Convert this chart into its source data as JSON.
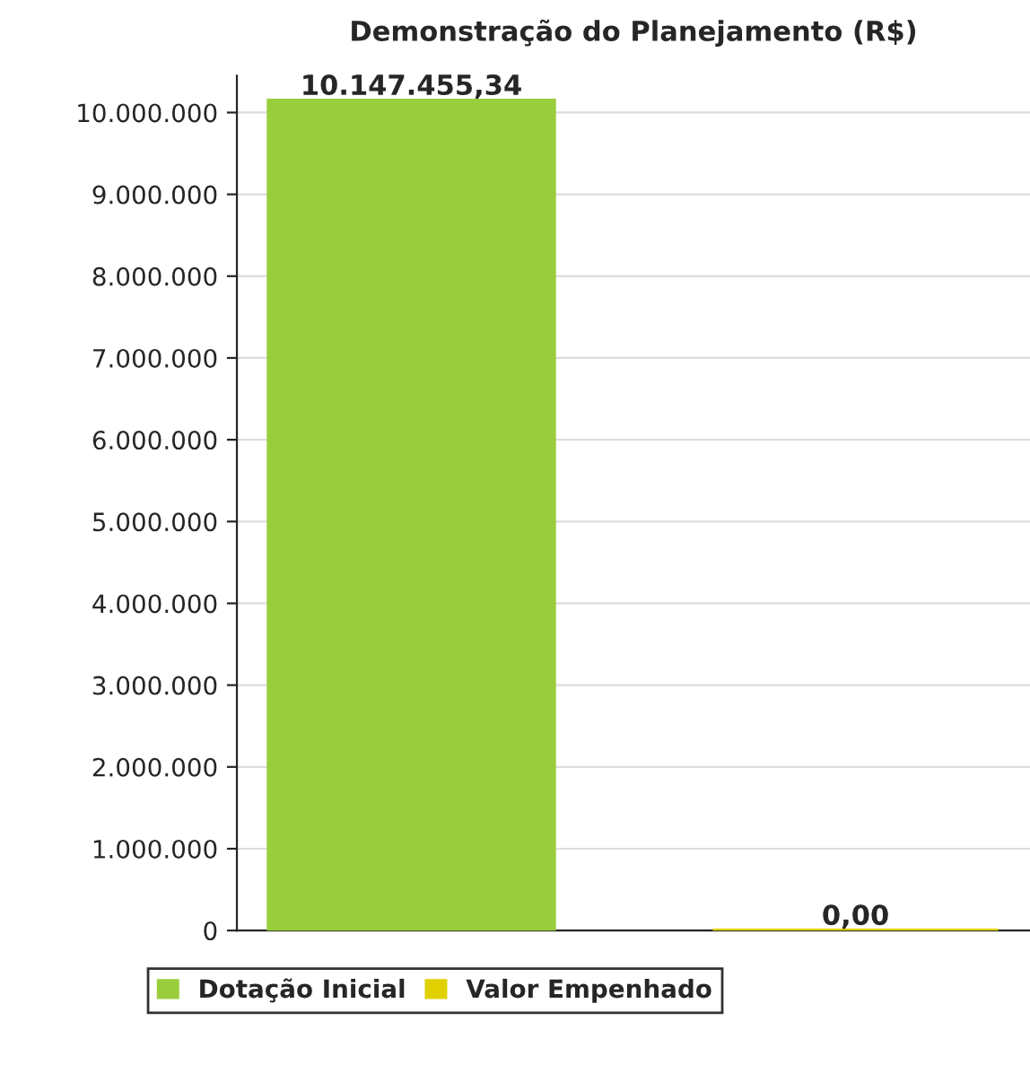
{
  "chart_data": {
    "type": "bar",
    "title": "Demonstração do Planejamento (R$)",
    "categories": [
      null
    ],
    "series": [
      {
        "name": "Dotação Inicial",
        "color": "#9acd3c",
        "values": [
          10147455.34
        ],
        "value_labels": [
          "10.147.455,34"
        ]
      },
      {
        "name": "Valor Empenhado",
        "color": "#e0d000",
        "values": [
          0
        ],
        "value_labels": [
          "0,00"
        ]
      }
    ],
    "ylim": [
      0,
      10450000
    ],
    "yticks": [
      0,
      {
        "value": 1000000,
        "label": "1.000.000"
      },
      {
        "value": 2000000,
        "label": "2.000.000"
      },
      {
        "value": 3000000,
        "label": "3.000.000"
      },
      {
        "value": 4000000,
        "label": "4.000.000"
      },
      {
        "value": 5000000,
        "label": "5.000.000"
      },
      {
        "value": 6000000,
        "label": "6.000.000"
      },
      {
        "value": 7000000,
        "label": "7.000.000"
      },
      {
        "value": 8000000,
        "label": "8.000.000"
      },
      {
        "value": 9000000,
        "label": "9.000.000"
      },
      {
        "value": 10000000,
        "label": "10.000.000"
      }
    ],
    "grid": "y",
    "legend": "bottom"
  }
}
